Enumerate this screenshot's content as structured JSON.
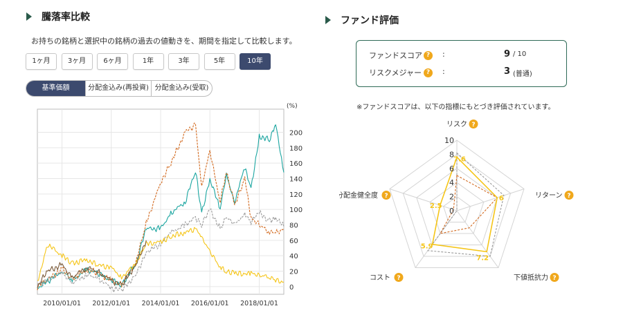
{
  "left_section": {
    "title": "騰落率比較",
    "description": "お持ちの銘柄と選択中の銘柄の過去の値動きを、期間を指定して比較します。",
    "periods": [
      "1ヶ月",
      "3ヶ月",
      "6ヶ月",
      "1年",
      "3年",
      "5年",
      "10年"
    ],
    "active_period": "10年",
    "segments": [
      "基準価額",
      "分配金込み(再投資)",
      "分配金込み(受取)"
    ],
    "active_segment": "基準価額"
  },
  "right_section": {
    "title": "ファンド評価",
    "fund_score_label": "ファンドスコア",
    "fund_score_value": "9",
    "fund_score_suffix": "/ 10",
    "risk_measure_label": "リスクメジャー",
    "risk_measure_value": "3",
    "risk_measure_suffix": "(普通)",
    "colon": ":",
    "note": "※ファンドスコアは、以下の指標にもとづき評価されています。"
  },
  "colors": {
    "teal": "#1aa5a0",
    "orange": "#d2691e",
    "gray": "#9a9a9a",
    "yellow": "#f5c518",
    "brown": "#7a5a3a",
    "navy": "#3c4a6e",
    "green_border": "#2e6a56",
    "help_icon": "#f0a81c"
  },
  "chart_data": [
    {
      "type": "line",
      "unit": "(%)",
      "x_ticks": [
        "2010/01/01",
        "2012/01/01",
        "2014/01/01",
        "2016/01/01",
        "2018/01/01"
      ],
      "x_range": [
        "2009/01/01",
        "2018/12/31"
      ],
      "y_ticks": [
        0,
        20,
        40,
        60,
        80,
        100,
        120,
        140,
        160,
        180,
        200
      ],
      "ylim": [
        -10,
        230
      ],
      "grid": true,
      "series": [
        {
          "color_key": "teal",
          "dash": "solid",
          "x": [
            "2009/01/01",
            "2010/01/01",
            "2010/06/01",
            "2011/01/01",
            "2011/06/01",
            "2012/01/01",
            "2012/06/01",
            "2013/01/01",
            "2013/06/01",
            "2014/01/01",
            "2014/06/01",
            "2015/01/01",
            "2015/06/01",
            "2015/09/01",
            "2016/01/01",
            "2016/06/01",
            "2016/09/01",
            "2017/01/01",
            "2017/06/01",
            "2017/09/01",
            "2018/01/01",
            "2018/06/01",
            "2018/09/01",
            "2018/12/31"
          ],
          "y": [
            -2,
            20,
            8,
            22,
            18,
            8,
            2,
            30,
            75,
            75,
            95,
            110,
            150,
            95,
            140,
            100,
            145,
            110,
            155,
            125,
            195,
            190,
            210,
            148
          ]
        },
        {
          "color_key": "orange",
          "dash": "dashed",
          "x": [
            "2009/01/01",
            "2010/01/01",
            "2010/06/01",
            "2011/01/01",
            "2011/06/01",
            "2012/01/01",
            "2012/06/01",
            "2013/01/01",
            "2013/06/01",
            "2014/01/01",
            "2014/06/01",
            "2015/01/01",
            "2015/06/01",
            "2015/09/01",
            "2016/01/01",
            "2016/06/01",
            "2016/09/01",
            "2017/01/01",
            "2017/06/01",
            "2017/09/01",
            "2018/01/01",
            "2018/06/01",
            "2018/09/01",
            "2018/12/31"
          ],
          "y": [
            0,
            22,
            10,
            22,
            18,
            8,
            2,
            32,
            82,
            135,
            160,
            200,
            210,
            130,
            175,
            110,
            150,
            105,
            140,
            90,
            80,
            70,
            70,
            75
          ]
        },
        {
          "color_key": "gray",
          "dash": "dashed",
          "x": [
            "2009/01/01",
            "2010/01/01",
            "2010/06/01",
            "2011/01/01",
            "2011/06/01",
            "2012/01/01",
            "2012/06/01",
            "2013/01/01",
            "2013/06/01",
            "2014/01/01",
            "2014/06/01",
            "2015/01/01",
            "2015/06/01",
            "2015/09/01",
            "2016/01/01",
            "2016/06/01",
            "2016/09/01",
            "2017/01/01",
            "2017/06/01",
            "2017/09/01",
            "2018/01/01",
            "2018/06/01",
            "2018/09/01",
            "2018/12/31"
          ],
          "y": [
            2,
            18,
            5,
            15,
            12,
            -2,
            -5,
            15,
            45,
            55,
            70,
            80,
            90,
            80,
            100,
            75,
            90,
            80,
            95,
            85,
            95,
            85,
            90,
            78
          ]
        },
        {
          "color_key": "yellow",
          "dash": "solid",
          "x": [
            "2009/01/01",
            "2009/06/01",
            "2010/01/01",
            "2010/06/01",
            "2011/01/01",
            "2011/06/01",
            "2012/01/01",
            "2012/06/01",
            "2013/01/01",
            "2013/06/01",
            "2014/01/01",
            "2014/06/01",
            "2015/01/01",
            "2015/06/01",
            "2015/09/01",
            "2016/01/01",
            "2016/06/01",
            "2016/09/01",
            "2017/01/01",
            "2017/06/01",
            "2017/09/01",
            "2018/01/01",
            "2018/06/01",
            "2018/09/01",
            "2018/12/31"
          ],
          "y": [
            5,
            55,
            40,
            30,
            35,
            28,
            25,
            12,
            30,
            55,
            58,
            65,
            70,
            75,
            65,
            45,
            25,
            20,
            18,
            15,
            18,
            15,
            12,
            8,
            6
          ]
        },
        {
          "color_key": "brown",
          "dash": "solid",
          "x": [
            "2009/01/01",
            "2009/06/01",
            "2010/01/01",
            "2010/06/01",
            "2011/01/01",
            "2011/06/01",
            "2012/01/01",
            "2012/06/01",
            "2013/01/01",
            "2013/06/01"
          ],
          "y": [
            0,
            20,
            28,
            12,
            25,
            20,
            8,
            2,
            28,
            60
          ]
        }
      ]
    },
    {
      "type": "radar",
      "axes": [
        "リスク",
        "リターン",
        "下値抵抗力",
        "コスト",
        "分配金健全度"
      ],
      "r_ticks": [
        0,
        2,
        4,
        6,
        8,
        10
      ],
      "rlim": [
        0,
        10
      ],
      "series": [
        {
          "color_key": "yellow",
          "dash": "solid",
          "values": [
            7.6,
            6,
            7.2,
            5.9,
            2.5
          ],
          "labelled": true
        },
        {
          "color_key": "orange",
          "dash": "dashed",
          "values": [
            5,
            6,
            3,
            4,
            0.5
          ],
          "labelled": false
        },
        {
          "color_key": "gray",
          "dash": "dashed",
          "values": [
            8.2,
            7,
            8,
            7,
            0
          ],
          "labelled": false
        }
      ]
    }
  ]
}
